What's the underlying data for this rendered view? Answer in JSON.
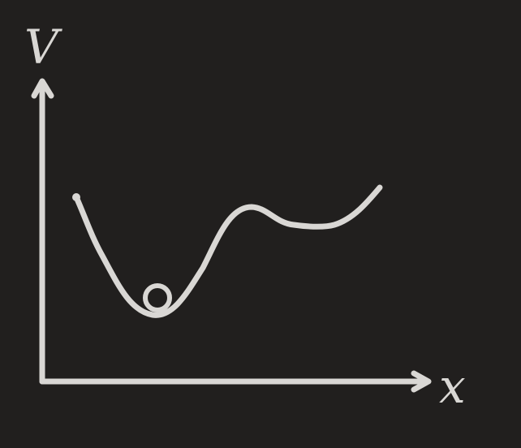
{
  "diagram": {
    "y_axis_label": "V",
    "x_axis_label": "x",
    "colors": {
      "background": "#211f1e",
      "ink": "#d9d7d4"
    }
  }
}
